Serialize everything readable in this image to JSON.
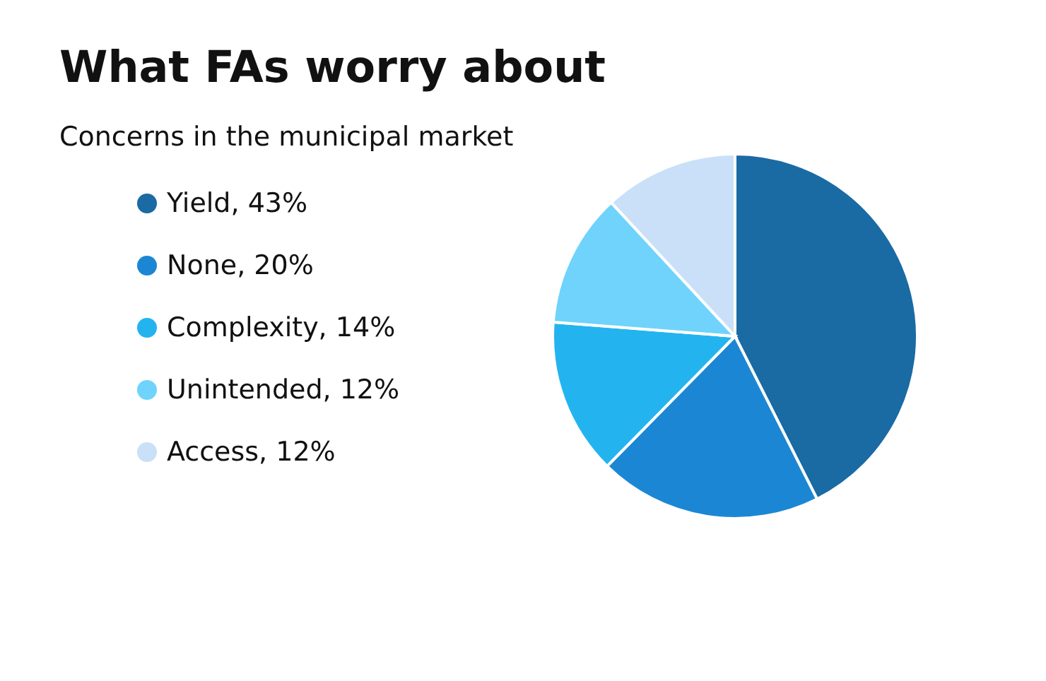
{
  "chart_data": {
    "type": "pie",
    "title": "What FAs worry about",
    "subtitle": "Concerns in the municipal market",
    "categories": [
      "Yield",
      "None",
      "Complexity",
      "Unintended",
      "Access"
    ],
    "values": [
      43,
      20,
      14,
      12,
      12
    ],
    "value_labels": [
      "43%",
      "20%",
      "14%",
      "12%",
      "12%"
    ],
    "colors": [
      "#1a6aa4",
      "#1b87d4",
      "#23b4ef",
      "#6fd3fc",
      "#c9e0f8"
    ],
    "legend": "left"
  }
}
